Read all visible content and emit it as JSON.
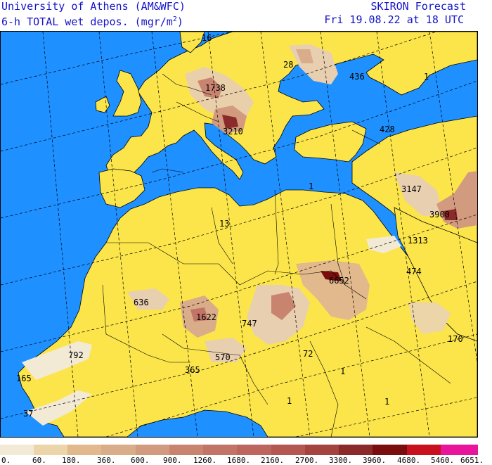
{
  "header": {
    "institution": "University of Athens (AM&WFC)",
    "field_title": "6-h TOTAL wet depos. (mgr/m",
    "field_unit_exp": "2",
    "field_title_end": ")",
    "model": "SKIRON Forecast",
    "valid_time": "Fri 19.08.22 at 18 UTC"
  },
  "colors": {
    "sea": "#1e90ff",
    "land": "#fbe54a",
    "border": "#000000",
    "grid": "#000000"
  },
  "map": {
    "value_labels": [
      {
        "text": "16"
      },
      {
        "text": "28"
      },
      {
        "text": "436"
      },
      {
        "text": "1"
      },
      {
        "text": "1738"
      },
      {
        "text": "3210"
      },
      {
        "text": "428"
      },
      {
        "text": "3147"
      },
      {
        "text": "1"
      },
      {
        "text": "3900"
      },
      {
        "text": "13"
      },
      {
        "text": "1313"
      },
      {
        "text": "474"
      },
      {
        "text": "6652"
      },
      {
        "text": "636"
      },
      {
        "text": "1622"
      },
      {
        "text": "747"
      },
      {
        "text": "792"
      },
      {
        "text": "570"
      },
      {
        "text": "72"
      },
      {
        "text": "170"
      },
      {
        "text": "365"
      },
      {
        "text": "1"
      },
      {
        "text": "165"
      },
      {
        "text": "1"
      },
      {
        "text": "1"
      },
      {
        "text": "37"
      }
    ]
  },
  "legend": {
    "ticks": [
      "0.",
      "60.",
      "180.",
      "360.",
      "600.",
      "900.",
      "1260.",
      "1680.",
      "2160.",
      "2700.",
      "3300.",
      "3960.",
      "4680.",
      "5460.",
      "6651."
    ],
    "swatch_colors": [
      "#f3ead6",
      "#ecd5a8",
      "#e2b98c",
      "#d9ac8a",
      "#d29a7e",
      "#c98470",
      "#c27466",
      "#bd6660",
      "#b45652",
      "#a4443e",
      "#8b2a2a",
      "#7a0d0d",
      "#c8101e",
      "#e8149c"
    ]
  }
}
